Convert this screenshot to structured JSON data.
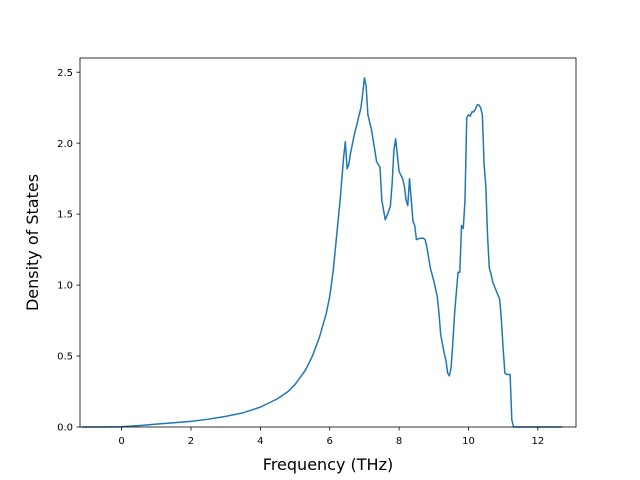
{
  "chart_data": {
    "type": "line",
    "title": "",
    "xlabel": "Frequency (THz)",
    "ylabel": "Density of States",
    "xlim": [
      -1.2,
      13.1
    ],
    "ylim": [
      0,
      2.6
    ],
    "xticks": [
      0,
      2,
      4,
      6,
      8,
      10,
      12
    ],
    "xtick_labels": [
      "0",
      "2",
      "4",
      "6",
      "8",
      "10",
      "12"
    ],
    "yticks": [
      0.0,
      0.5,
      1.0,
      1.5,
      2.0,
      2.5
    ],
    "ytick_labels": [
      "0.0",
      "0.5",
      "1.0",
      "1.5",
      "2.0",
      "2.5"
    ],
    "grid": false,
    "legend": false,
    "series": [
      {
        "color": "#1f77b4",
        "x": [
          -1.15,
          -0.5,
          0.0,
          0.5,
          1.0,
          1.5,
          2.0,
          2.5,
          3.0,
          3.5,
          4.0,
          4.5,
          4.8,
          5.0,
          5.3,
          5.5,
          5.7,
          5.9,
          6.0,
          6.1,
          6.2,
          6.3,
          6.4,
          6.45,
          6.5,
          6.55,
          6.6,
          6.7,
          6.8,
          6.9,
          6.95,
          7.0,
          7.05,
          7.1,
          7.2,
          7.3,
          7.35,
          7.45,
          7.5,
          7.6,
          7.7,
          7.75,
          7.8,
          7.85,
          7.9,
          8.0,
          8.1,
          8.15,
          8.2,
          8.25,
          8.3,
          8.35,
          8.4,
          8.45,
          8.5,
          8.6,
          8.7,
          8.75,
          8.8,
          8.9,
          9.0,
          9.1,
          9.15,
          9.2,
          9.3,
          9.35,
          9.4,
          9.45,
          9.5,
          9.55,
          9.6,
          9.65,
          9.7,
          9.75,
          9.8,
          9.85,
          9.9,
          9.95,
          10.0,
          10.05,
          10.1,
          10.15,
          10.2,
          10.25,
          10.3,
          10.35,
          10.4,
          10.45,
          10.5,
          10.55,
          10.6,
          10.65,
          10.7,
          10.8,
          10.9,
          10.95,
          11.0,
          11.05,
          11.1,
          11.2,
          11.25,
          11.3,
          11.35,
          11.4,
          11.5,
          12.0,
          12.7
        ],
        "y": [
          0.0,
          0.0,
          0.002,
          0.01,
          0.02,
          0.03,
          0.04,
          0.055,
          0.075,
          0.1,
          0.14,
          0.2,
          0.25,
          0.3,
          0.4,
          0.5,
          0.63,
          0.8,
          0.92,
          1.1,
          1.35,
          1.6,
          1.9,
          2.01,
          1.82,
          1.85,
          1.93,
          2.05,
          2.15,
          2.25,
          2.35,
          2.46,
          2.4,
          2.2,
          2.1,
          1.95,
          1.87,
          1.83,
          1.6,
          1.46,
          1.52,
          1.56,
          1.72,
          1.95,
          2.03,
          1.8,
          1.75,
          1.7,
          1.6,
          1.56,
          1.75,
          1.6,
          1.45,
          1.42,
          1.32,
          1.33,
          1.33,
          1.32,
          1.27,
          1.12,
          1.03,
          0.92,
          0.8,
          0.65,
          0.52,
          0.47,
          0.38,
          0.36,
          0.42,
          0.6,
          0.8,
          0.95,
          1.09,
          1.09,
          1.42,
          1.4,
          1.6,
          2.18,
          2.2,
          2.19,
          2.22,
          2.22,
          2.24,
          2.27,
          2.27,
          2.25,
          2.2,
          1.85,
          1.7,
          1.35,
          1.12,
          1.08,
          1.02,
          0.96,
          0.9,
          0.75,
          0.55,
          0.38,
          0.37,
          0.37,
          0.05,
          0.0,
          0.0,
          0.0,
          0.0,
          0.0,
          0.0
        ]
      }
    ]
  }
}
